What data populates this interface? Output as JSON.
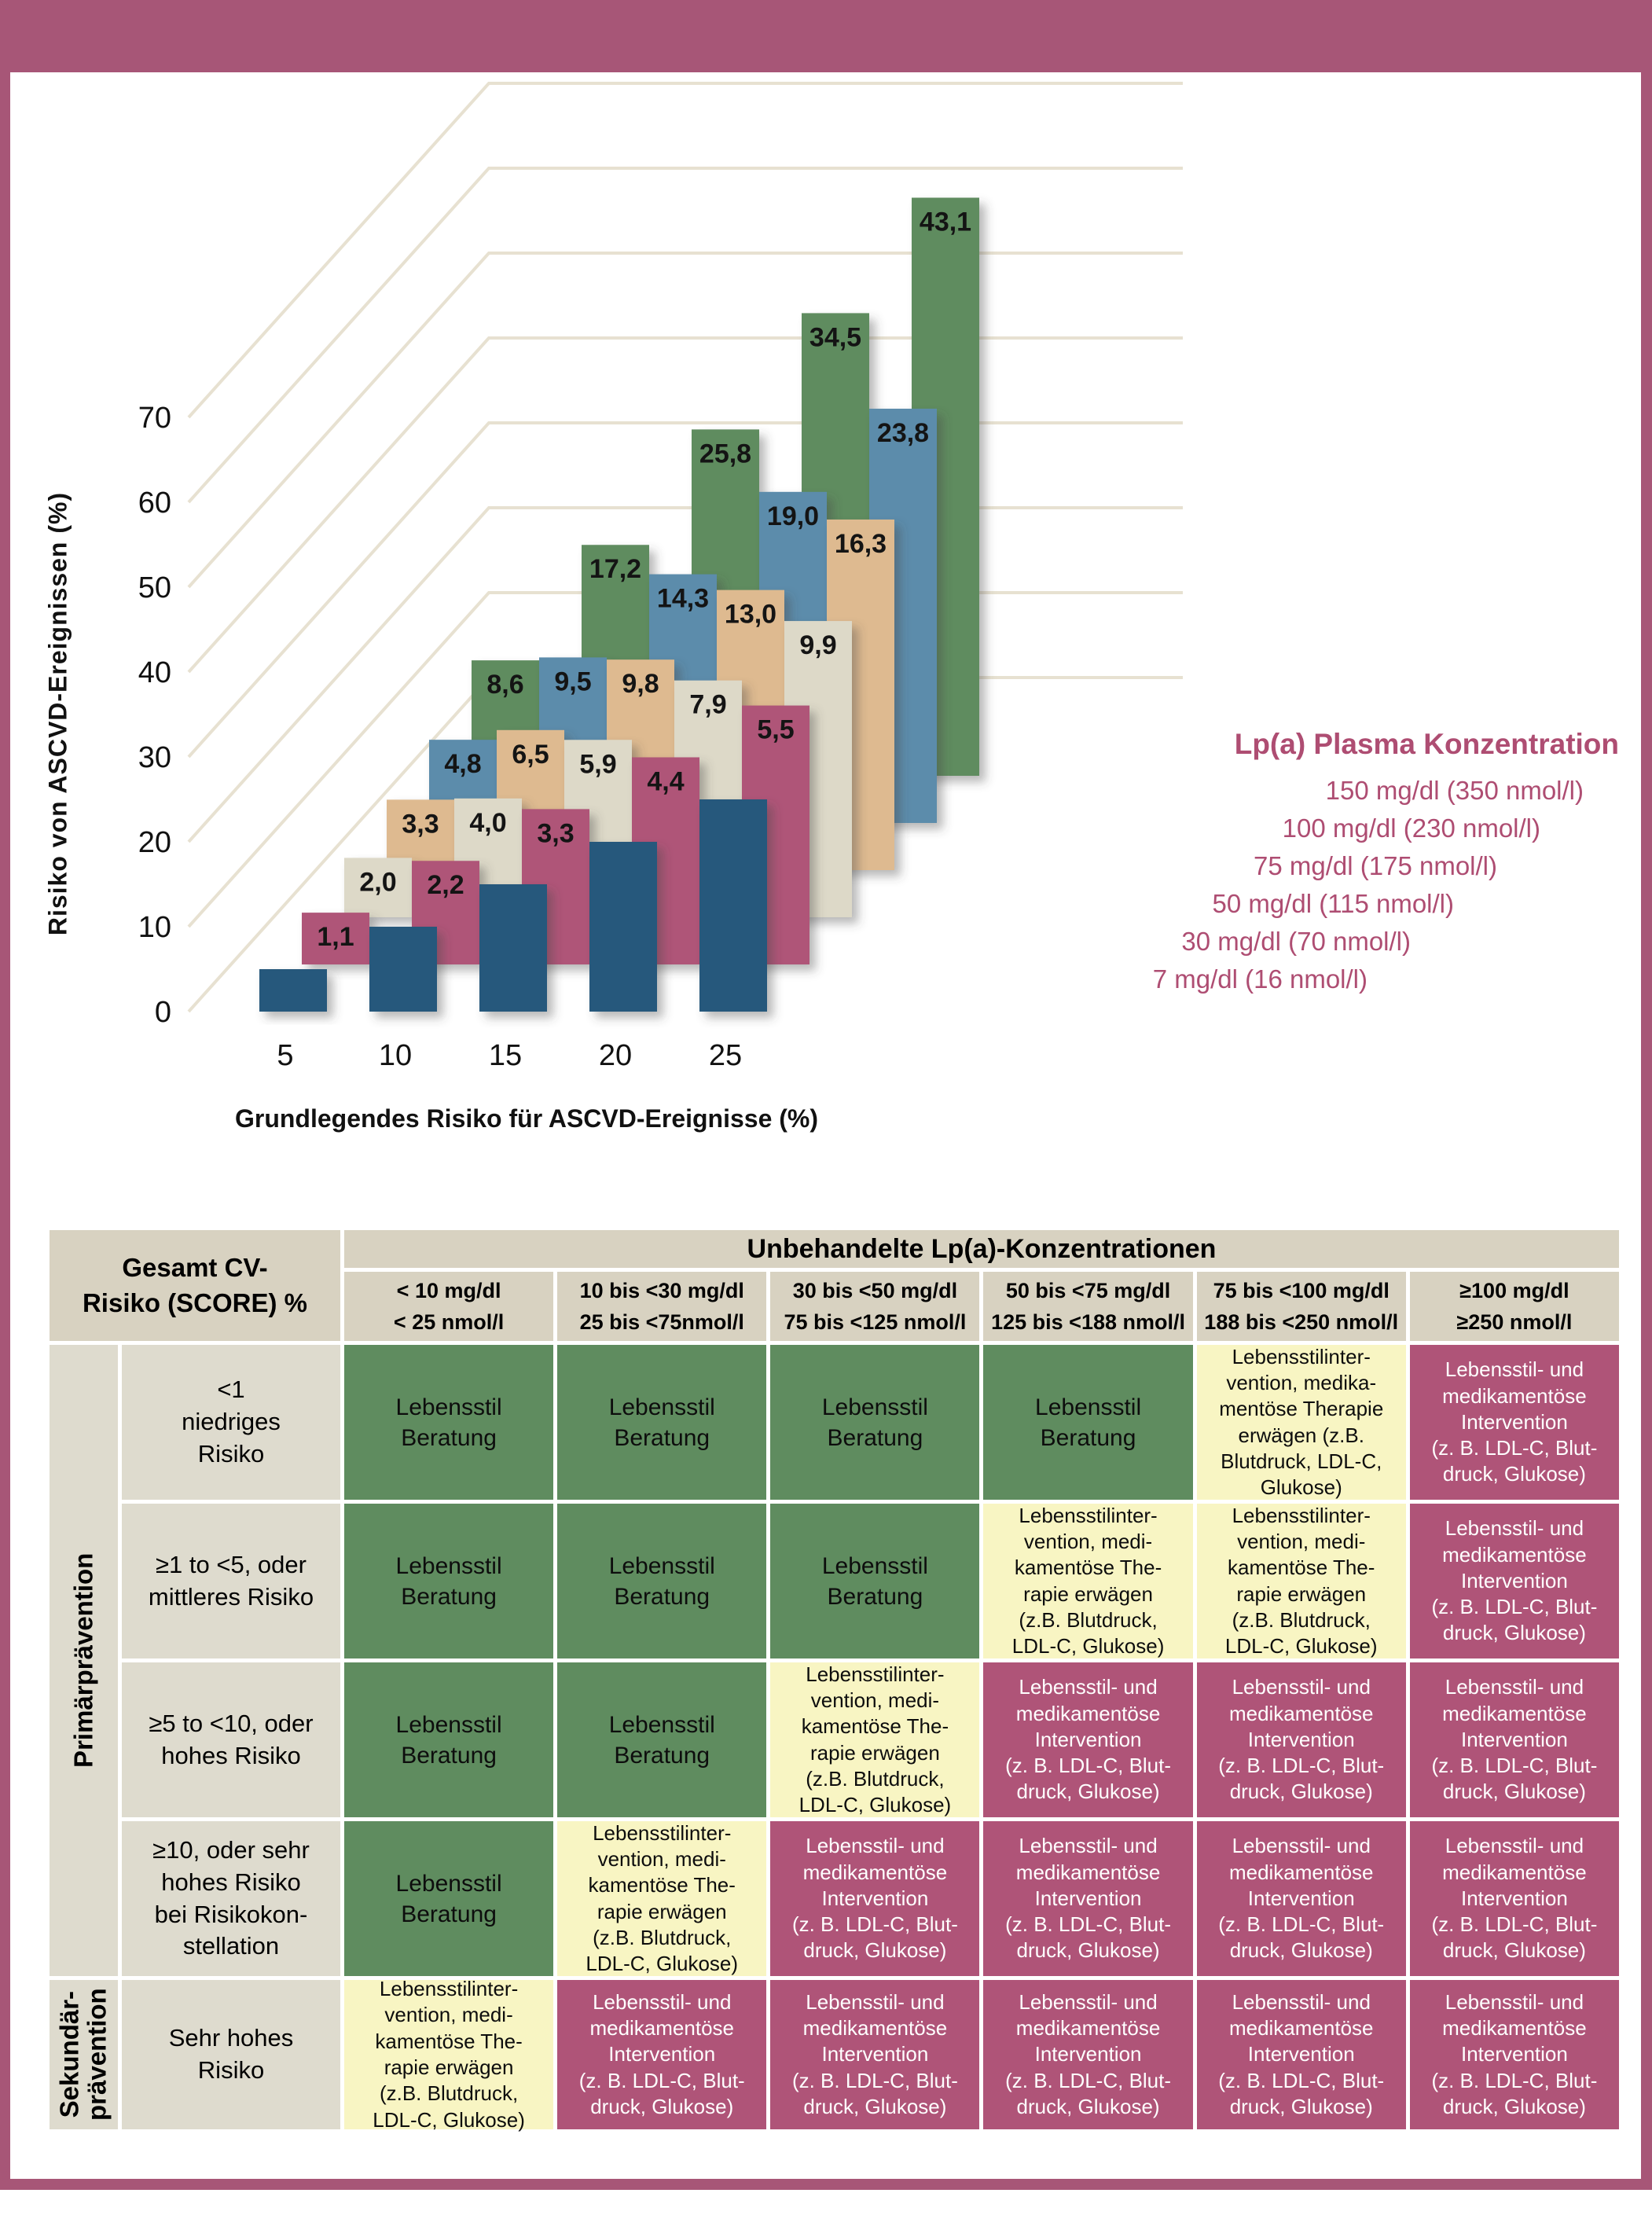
{
  "figure": {
    "banner_color": "#a75677",
    "frame_color": "#a75677",
    "background": "#ffffff"
  },
  "chart": {
    "y_axis": {
      "title": "Risiko von ASCVD-Ereignissen (%)"
    },
    "x_axis": {
      "title": "Grundlegendes Risiko für ASCVD-Ereignisse (%)"
    },
    "legend": {
      "title": "Lp(a) Plasma Konzentration",
      "text_color": "#ae4d72",
      "items": [
        "150 mg/dl (350 nmol/l)",
        "100 mg/dl (230 nmol/l)",
        "75 mg/dl (175 nmol/l)",
        "50 mg/dl (115 nmol/l)",
        "30 mg/dl (70 nmol/l)",
        "7 mg/dl (16 nmol/l)"
      ]
    }
  },
  "chart_data": {
    "type": "bar",
    "projection": "3d-perspective",
    "xlabel": "Grundlegendes Risiko für ASCVD-Ereignisse (%)",
    "ylabel": "Risiko von ASCVD-Ereignissen (%)",
    "x_categories": [
      5,
      10,
      15,
      20,
      25
    ],
    "ylim": [
      0,
      70
    ],
    "yticks": [
      0,
      10,
      20,
      30,
      40,
      50,
      60,
      70
    ],
    "gridline_color": "#e7e1d1",
    "bar_total_rule": "baseline_plus_added",
    "legend_position": "right",
    "series": [
      {
        "name": "7 mg/dl (16 nmol/l)",
        "color": "#27597c",
        "labeled": false,
        "added_risk": [
          0,
          0,
          0,
          0,
          0
        ]
      },
      {
        "name": "30 mg/dl (70 nmol/l)",
        "color": "#af5478",
        "labeled": true,
        "added_risk": [
          1.1,
          2.2,
          3.3,
          4.4,
          5.5
        ]
      },
      {
        "name": "50 mg/dl (115 nmol/l)",
        "color": "#ddd9c8",
        "labeled": true,
        "added_risk": [
          2.0,
          4.0,
          5.9,
          7.9,
          9.9
        ]
      },
      {
        "name": "75 mg/dl (175 nmol/l)",
        "color": "#deba90",
        "labeled": true,
        "added_risk": [
          3.3,
          6.5,
          9.8,
          13.0,
          16.3
        ]
      },
      {
        "name": "100 mg/dl (230 nmol/l)",
        "color": "#5b8cab",
        "labeled": true,
        "added_risk": [
          4.8,
          9.5,
          14.3,
          19.0,
          23.8
        ]
      },
      {
        "name": "150 mg/dl (350 nmol/l)",
        "color": "#5f8c5f",
        "labeled": true,
        "added_risk": [
          8.6,
          17.2,
          25.8,
          34.5,
          43.1
        ]
      }
    ]
  },
  "table": {
    "corner_header": "Gesamt CV-\nRisiko (SCORE) %",
    "span_header": "Unbehandelte Lp(a)-Konzentrationen",
    "col_headers": [
      "< 10 mg/dl\n< 25 nmol/l",
      "10 bis <30 mg/dl\n25 bis <75nmol/l",
      "30 bis <50 mg/dl\n75 bis <125 nmol/l",
      "50 bis <75 mg/dl\n125 bis <188 nmol/l",
      "75 bis <100 mg/dl\n188 bis <250 nmol/l",
      "≥100 mg/dl\n≥250 nmol/l"
    ],
    "row_groups": [
      {
        "label": "Primärprävention",
        "rows": 4
      },
      {
        "label": "Sekundär-\nprävention",
        "rows": 1
      }
    ],
    "cell_variants": {
      "green": {
        "bg": "#5f8c5f",
        "text": "Lebensstil\nBeratung"
      },
      "yellow_a": {
        "bg": "#f8f5c3",
        "text": "Lebensstilinter-\nvention, medika-\nmentöse Therapie\nerwägen (z.B.\nBlutdruck, LDL-C,\nGlukose)"
      },
      "yellow_b": {
        "bg": "#f8f5c3",
        "text": "Lebensstilinter-\nvention, medi-\nkamentöse The-\nrapie erwägen\n(z.B. Blutdruck,\nLDL-C, Glukose)"
      },
      "mauve": {
        "bg": "#af5478",
        "text": "Lebensstil- und\nmedikamentöse\nIntervention\n(z. B. LDL-C, Blut-\ndruck, Glukose)"
      }
    },
    "rows": [
      {
        "label": "<1\nniedriges\nRisiko",
        "cells": [
          "green",
          "green",
          "green",
          "green",
          "yellow_a",
          "mauve"
        ]
      },
      {
        "label": "≥1 to <5, oder\nmittleres Risiko",
        "cells": [
          "green",
          "green",
          "green",
          "yellow_b",
          "yellow_b",
          "mauve"
        ]
      },
      {
        "label": "≥5 to <10, oder\nhohes Risiko",
        "cells": [
          "green",
          "green",
          "yellow_b",
          "mauve",
          "mauve",
          "mauve"
        ]
      },
      {
        "label": "≥10, oder sehr\nhohes Risiko\nbei Risikokon-\nstellation",
        "cells": [
          "green",
          "yellow_b",
          "mauve",
          "mauve",
          "mauve",
          "mauve"
        ]
      },
      {
        "label": "Sehr hohes\nRisiko",
        "cells": [
          "yellow_b",
          "mauve",
          "mauve",
          "mauve",
          "mauve",
          "mauve"
        ]
      }
    ],
    "header_bg": "#d8d2c1",
    "label_bg": "#dedbce"
  }
}
